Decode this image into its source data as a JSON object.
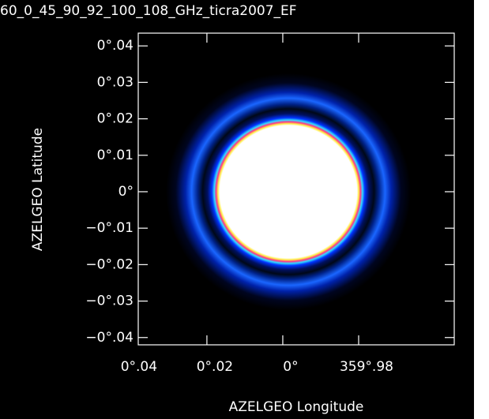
{
  "chart_data": {
    "type": "image",
    "title": "60_0_45_90_92_100_108_GHz_ticra2007_EF",
    "xlabel": "AZELGEO Longitude",
    "ylabel": "AZELGEO Latitude",
    "xlim": [
      0.0381,
      -0.0452
    ],
    "ylim": [
      -0.042,
      0.0435
    ],
    "xticks": [
      {
        "value": 0.04,
        "label": "0°.04"
      },
      {
        "value": 0.02,
        "label": "0°.02"
      },
      {
        "value": 0,
        "label": "0°"
      },
      {
        "value": -0.02,
        "label": "359°.98"
      }
    ],
    "yticks": [
      {
        "value": 0.04,
        "label": "0°.04"
      },
      {
        "value": 0.03,
        "label": "0°.03"
      },
      {
        "value": 0.02,
        "label": "0°.02"
      },
      {
        "value": 0.01,
        "label": "0°.01"
      },
      {
        "value": 0,
        "label": "0°"
      },
      {
        "value": -0.01,
        "label": "−0°.01"
      },
      {
        "value": -0.02,
        "label": "−0°.02"
      },
      {
        "value": -0.03,
        "label": "−0°.03"
      },
      {
        "value": -0.04,
        "label": "−0°.04"
      }
    ]
  }
}
